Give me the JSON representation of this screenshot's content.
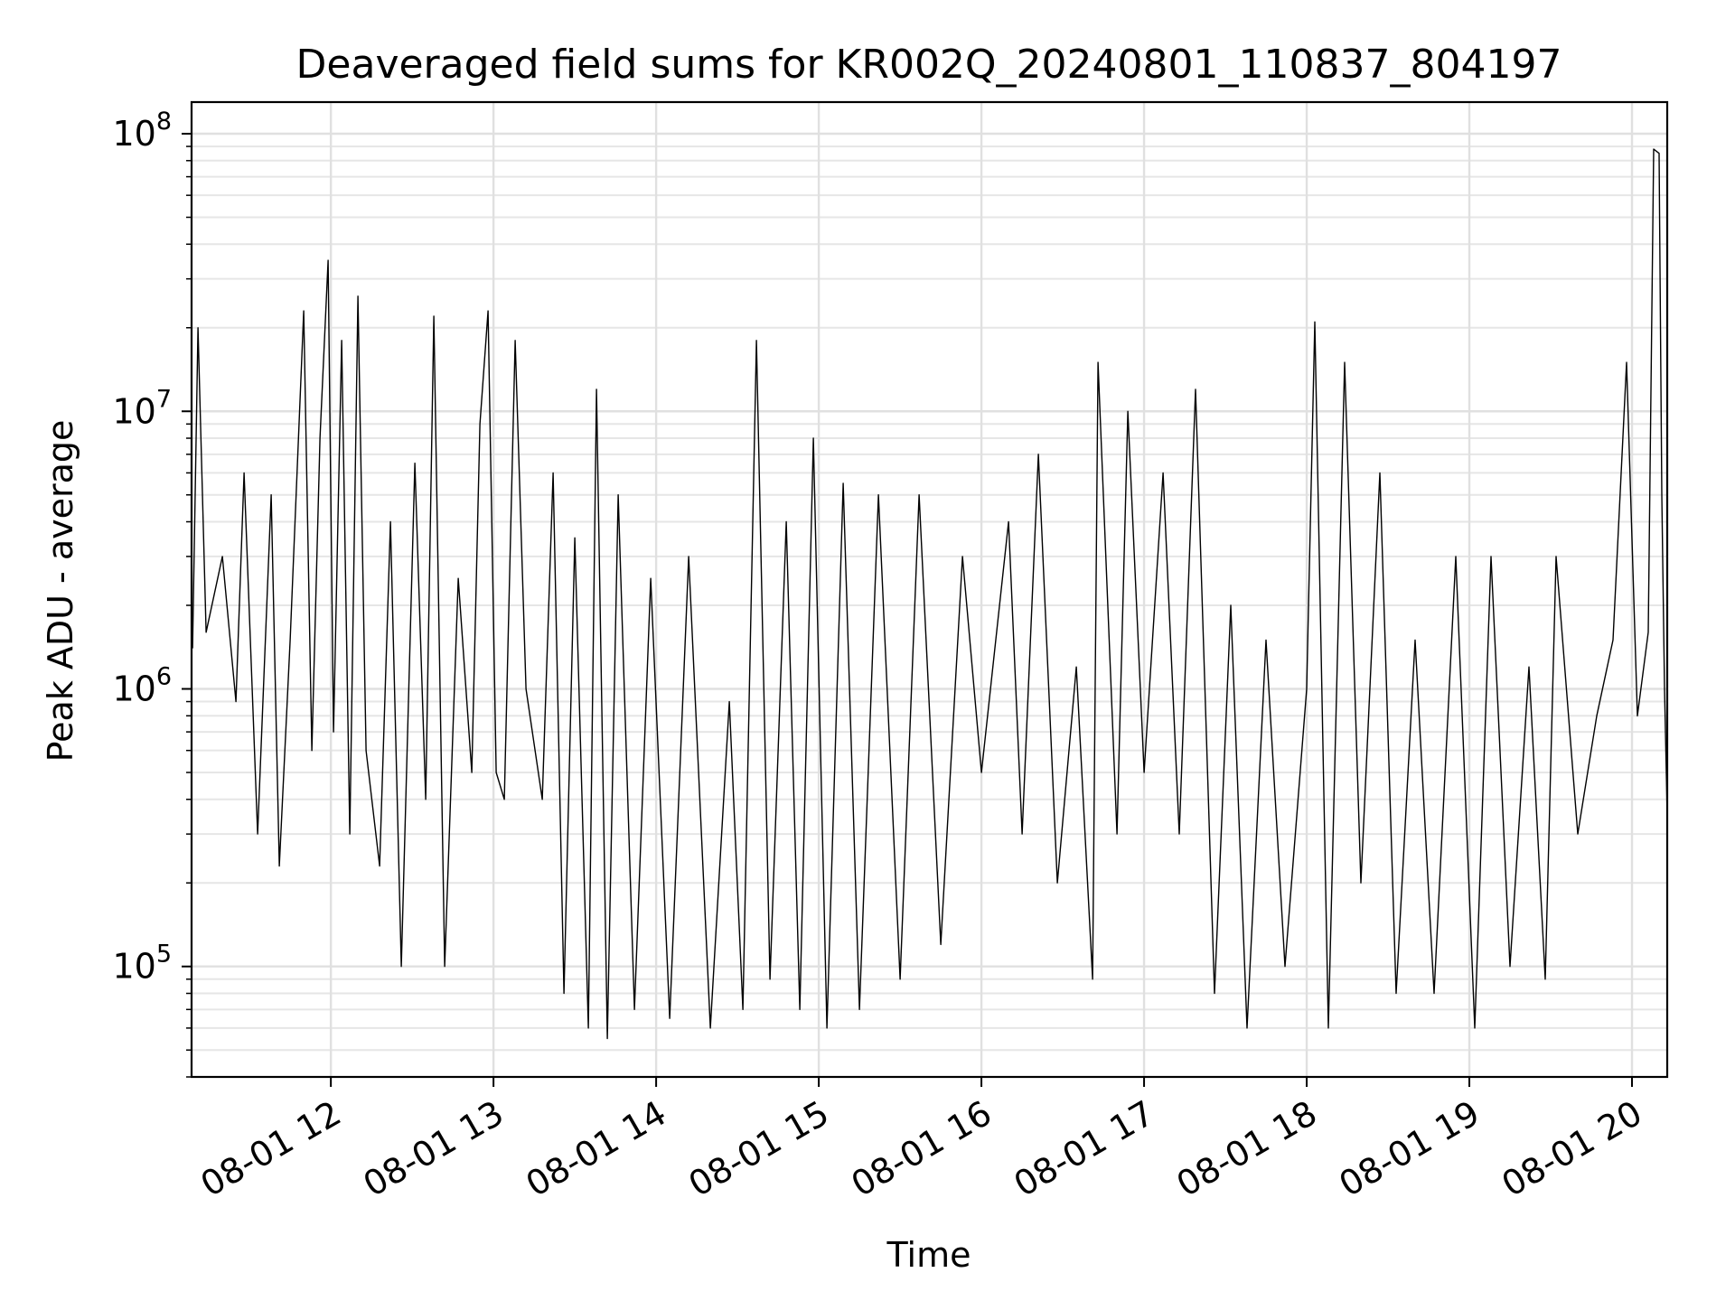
{
  "chart_data": {
    "type": "line",
    "title": "Deaveraged field sums for KR002Q_20240801_110837_804197",
    "xlabel": "Time",
    "ylabel": "Peak ADU - average",
    "x_scale": "time",
    "y_scale": "log",
    "xlim": [
      "2024-08-01 11:08:37",
      "2024-08-01 20:13:00"
    ],
    "ylim": [
      40000,
      130000000
    ],
    "grid": true,
    "legend": "none",
    "line_color": "#000000",
    "x_ticks": [
      {
        "value": "2024-08-01 12:00",
        "label": "08-01 12"
      },
      {
        "value": "2024-08-01 13:00",
        "label": "08-01 13"
      },
      {
        "value": "2024-08-01 14:00",
        "label": "08-01 14"
      },
      {
        "value": "2024-08-01 15:00",
        "label": "08-01 15"
      },
      {
        "value": "2024-08-01 16:00",
        "label": "08-01 16"
      },
      {
        "value": "2024-08-01 17:00",
        "label": "08-01 17"
      },
      {
        "value": "2024-08-01 18:00",
        "label": "08-01 18"
      },
      {
        "value": "2024-08-01 19:00",
        "label": "08-01 19"
      },
      {
        "value": "2024-08-01 20:00",
        "label": "08-01 20"
      }
    ],
    "y_ticks": [
      {
        "value": 100000,
        "base": "10",
        "exp": "5"
      },
      {
        "value": 1000000,
        "base": "10",
        "exp": "6"
      },
      {
        "value": 10000000,
        "base": "10",
        "exp": "7"
      },
      {
        "value": 100000000,
        "base": "10",
        "exp": "8"
      }
    ],
    "series": [
      {
        "points": [
          [
            "2024-08-01 11:09",
            1400000
          ],
          [
            "2024-08-01 11:11",
            20000000
          ],
          [
            "2024-08-01 11:14",
            1600000
          ],
          [
            "2024-08-01 11:20",
            3000000
          ],
          [
            "2024-08-01 11:25",
            900000
          ],
          [
            "2024-08-01 11:28",
            6000000
          ],
          [
            "2024-08-01 11:33",
            300000
          ],
          [
            "2024-08-01 11:38",
            5000000
          ],
          [
            "2024-08-01 11:41",
            230000
          ],
          [
            "2024-08-01 11:45",
            1500000
          ],
          [
            "2024-08-01 11:50",
            23000000
          ],
          [
            "2024-08-01 11:53",
            600000
          ],
          [
            "2024-08-01 11:56",
            8000000
          ],
          [
            "2024-08-01 11:59",
            35000000
          ],
          [
            "2024-08-01 12:01",
            700000
          ],
          [
            "2024-08-01 12:04",
            18000000
          ],
          [
            "2024-08-01 12:07",
            300000
          ],
          [
            "2024-08-01 12:10",
            26000000
          ],
          [
            "2024-08-01 12:13",
            600000
          ],
          [
            "2024-08-01 12:18",
            230000
          ],
          [
            "2024-08-01 12:22",
            4000000
          ],
          [
            "2024-08-01 12:26",
            100000
          ],
          [
            "2024-08-01 12:31",
            6500000
          ],
          [
            "2024-08-01 12:35",
            400000
          ],
          [
            "2024-08-01 12:38",
            22000000
          ],
          [
            "2024-08-01 12:42",
            100000
          ],
          [
            "2024-08-01 12:47",
            2500000
          ],
          [
            "2024-08-01 12:52",
            500000
          ],
          [
            "2024-08-01 12:55",
            9000000
          ],
          [
            "2024-08-01 12:58",
            23000000
          ],
          [
            "2024-08-01 13:01",
            500000
          ],
          [
            "2024-08-01 13:04",
            400000
          ],
          [
            "2024-08-01 13:08",
            18000000
          ],
          [
            "2024-08-01 13:12",
            1000000
          ],
          [
            "2024-08-01 13:18",
            400000
          ],
          [
            "2024-08-01 13:22",
            6000000
          ],
          [
            "2024-08-01 13:26",
            80000
          ],
          [
            "2024-08-01 13:30",
            3500000
          ],
          [
            "2024-08-01 13:35",
            60000
          ],
          [
            "2024-08-01 13:38",
            12000000
          ],
          [
            "2024-08-01 13:42",
            55000
          ],
          [
            "2024-08-01 13:46",
            5000000
          ],
          [
            "2024-08-01 13:52",
            70000
          ],
          [
            "2024-08-01 13:58",
            2500000
          ],
          [
            "2024-08-01 14:05",
            65000
          ],
          [
            "2024-08-01 14:12",
            3000000
          ],
          [
            "2024-08-01 14:20",
            60000
          ],
          [
            "2024-08-01 14:27",
            900000
          ],
          [
            "2024-08-01 14:32",
            70000
          ],
          [
            "2024-08-01 14:37",
            18000000
          ],
          [
            "2024-08-01 14:42",
            90000
          ],
          [
            "2024-08-01 14:48",
            4000000
          ],
          [
            "2024-08-01 14:53",
            70000
          ],
          [
            "2024-08-01 14:58",
            8000000
          ],
          [
            "2024-08-01 15:03",
            60000
          ],
          [
            "2024-08-01 15:09",
            5500000
          ],
          [
            "2024-08-01 15:15",
            70000
          ],
          [
            "2024-08-01 15:22",
            5000000
          ],
          [
            "2024-08-01 15:30",
            90000
          ],
          [
            "2024-08-01 15:37",
            5000000
          ],
          [
            "2024-08-01 15:45",
            120000
          ],
          [
            "2024-08-01 15:53",
            3000000
          ],
          [
            "2024-08-01 16:00",
            500000
          ],
          [
            "2024-08-01 16:10",
            4000000
          ],
          [
            "2024-08-01 16:15",
            300000
          ],
          [
            "2024-08-01 16:21",
            7000000
          ],
          [
            "2024-08-01 16:28",
            200000
          ],
          [
            "2024-08-01 16:35",
            1200000
          ],
          [
            "2024-08-01 16:41",
            90000
          ],
          [
            "2024-08-01 16:43",
            15000000
          ],
          [
            "2024-08-01 16:50",
            300000
          ],
          [
            "2024-08-01 16:54",
            10000000
          ],
          [
            "2024-08-01 17:00",
            500000
          ],
          [
            "2024-08-01 17:07",
            6000000
          ],
          [
            "2024-08-01 17:13",
            300000
          ],
          [
            "2024-08-01 17:19",
            12000000
          ],
          [
            "2024-08-01 17:26",
            80000
          ],
          [
            "2024-08-01 17:32",
            2000000
          ],
          [
            "2024-08-01 17:38",
            60000
          ],
          [
            "2024-08-01 17:45",
            1500000
          ],
          [
            "2024-08-01 17:52",
            100000
          ],
          [
            "2024-08-01 18:00",
            1000000
          ],
          [
            "2024-08-01 18:03",
            21000000
          ],
          [
            "2024-08-01 18:08",
            60000
          ],
          [
            "2024-08-01 18:14",
            15000000
          ],
          [
            "2024-08-01 18:20",
            200000
          ],
          [
            "2024-08-01 18:27",
            6000000
          ],
          [
            "2024-08-01 18:33",
            80000
          ],
          [
            "2024-08-01 18:40",
            1500000
          ],
          [
            "2024-08-01 18:47",
            80000
          ],
          [
            "2024-08-01 18:55",
            3000000
          ],
          [
            "2024-08-01 19:02",
            60000
          ],
          [
            "2024-08-01 19:08",
            3000000
          ],
          [
            "2024-08-01 19:15",
            100000
          ],
          [
            "2024-08-01 19:22",
            1200000
          ],
          [
            "2024-08-01 19:28",
            90000
          ],
          [
            "2024-08-01 19:32",
            3000000
          ],
          [
            "2024-08-01 19:40",
            300000
          ],
          [
            "2024-08-01 19:47",
            800000
          ],
          [
            "2024-08-01 19:53",
            1500000
          ],
          [
            "2024-08-01 19:58",
            15000000
          ],
          [
            "2024-08-01 20:02",
            800000
          ],
          [
            "2024-08-01 20:06",
            1600000
          ],
          [
            "2024-08-01 20:08",
            88000000
          ],
          [
            "2024-08-01 20:10",
            85000000
          ],
          [
            "2024-08-01 20:11",
            5000000
          ],
          [
            "2024-08-01 20:12",
            1000000
          ],
          [
            "2024-08-01 20:13",
            350000
          ]
        ]
      }
    ]
  }
}
